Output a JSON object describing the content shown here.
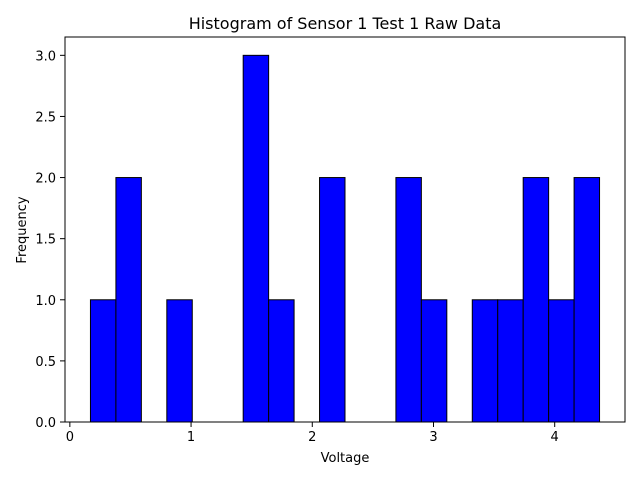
{
  "chart_data": {
    "type": "bar",
    "title": "Histogram of Sensor 1 Test 1 Raw Data",
    "xlabel": "Voltage",
    "ylabel": "Frequency",
    "bin_edges": [
      0.17,
      0.38,
      0.59,
      0.8,
      1.01,
      1.22,
      1.43,
      1.64,
      1.85,
      2.06,
      2.27,
      2.48,
      2.69,
      2.9,
      3.11,
      3.32,
      3.53,
      3.74,
      3.95,
      4.16,
      4.37
    ],
    "values": [
      1,
      2,
      0,
      1,
      0,
      0,
      3,
      1,
      0,
      2,
      0,
      0,
      2,
      1,
      0,
      1,
      1,
      2,
      1,
      2
    ],
    "xlim": [
      -0.04,
      4.58
    ],
    "ylim": [
      0,
      3.15
    ],
    "xticks": [
      0,
      1,
      2,
      3,
      4
    ],
    "xtick_labels": [
      "0",
      "1",
      "2",
      "3",
      "4"
    ],
    "yticks": [
      0.0,
      0.5,
      1.0,
      1.5,
      2.0,
      2.5,
      3.0
    ],
    "ytick_labels": [
      "0.0",
      "0.5",
      "1.0",
      "1.5",
      "2.0",
      "2.5",
      "3.0"
    ],
    "bar_color": "#0000ff",
    "edge_color": "#000000",
    "grid": false,
    "legend": "none"
  }
}
